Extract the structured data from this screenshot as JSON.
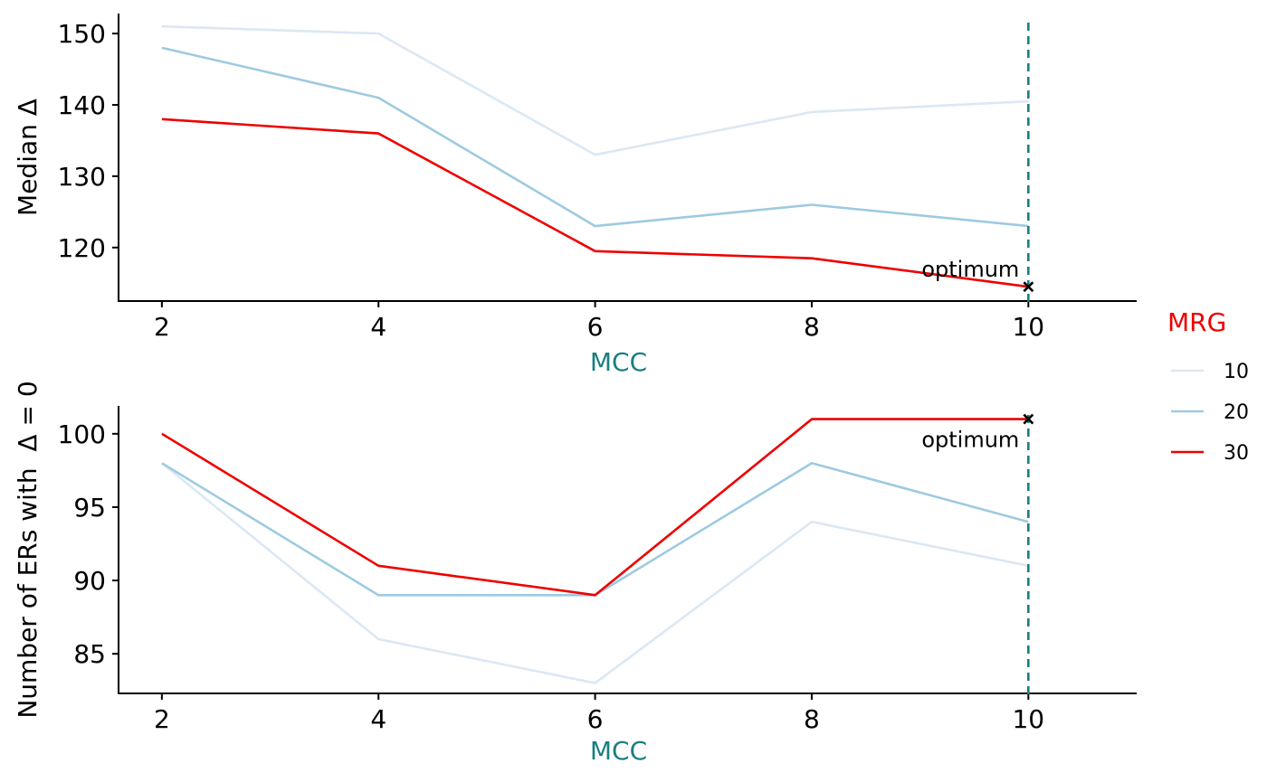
{
  "colors": {
    "axis_title_x": "#1a7f7f",
    "legend_title": "#ee0000",
    "vline": "#1a7f7f",
    "marker": "#000000"
  },
  "legend": {
    "title": "MRG",
    "entries": [
      {
        "label": "10",
        "color": "#dbe8f4"
      },
      {
        "label": "20",
        "color": "#9ecae1"
      },
      {
        "label": "30",
        "color": "#ee0000"
      }
    ]
  },
  "chart_data": [
    {
      "type": "line",
      "xlabel": "MCC",
      "ylabel": "Median Δ",
      "x": [
        2,
        4,
        6,
        8,
        10
      ],
      "xlim": [
        1.6,
        11.0
      ],
      "ylim": [
        112.5,
        152.8
      ],
      "xticks": [
        2,
        4,
        6,
        8,
        10
      ],
      "yticks": [
        120,
        130,
        140,
        150
      ],
      "series": [
        {
          "name": "10",
          "color": "#dbe8f4",
          "values": [
            151,
            150,
            133,
            139,
            140.5
          ]
        },
        {
          "name": "20",
          "color": "#9ecae1",
          "values": [
            148,
            141,
            123,
            126,
            123
          ]
        },
        {
          "name": "30",
          "color": "#ee0000",
          "values": [
            138,
            136,
            119.5,
            118.5,
            114.5
          ]
        }
      ],
      "vline_x": 10,
      "optimum": {
        "x": 10,
        "y": 114.5,
        "label": "optimum"
      }
    },
    {
      "type": "line",
      "xlabel": "MCC",
      "ylabel": "Number of ERs with  Δ = 0",
      "x": [
        2,
        4,
        6,
        8,
        10
      ],
      "xlim": [
        1.6,
        11.0
      ],
      "ylim": [
        82.3,
        101.9
      ],
      "xticks": [
        2,
        4,
        6,
        8,
        10
      ],
      "yticks": [
        85,
        90,
        95,
        100
      ],
      "series": [
        {
          "name": "10",
          "color": "#dbe8f4",
          "values": [
            98,
            86,
            83,
            94,
            91
          ]
        },
        {
          "name": "20",
          "color": "#9ecae1",
          "values": [
            98,
            89,
            89,
            98,
            94
          ]
        },
        {
          "name": "30",
          "color": "#ee0000",
          "values": [
            100,
            91,
            89,
            101,
            101
          ]
        }
      ],
      "vline_x": 10,
      "optimum": {
        "x": 10,
        "y": 101,
        "label": "optimum"
      }
    }
  ]
}
